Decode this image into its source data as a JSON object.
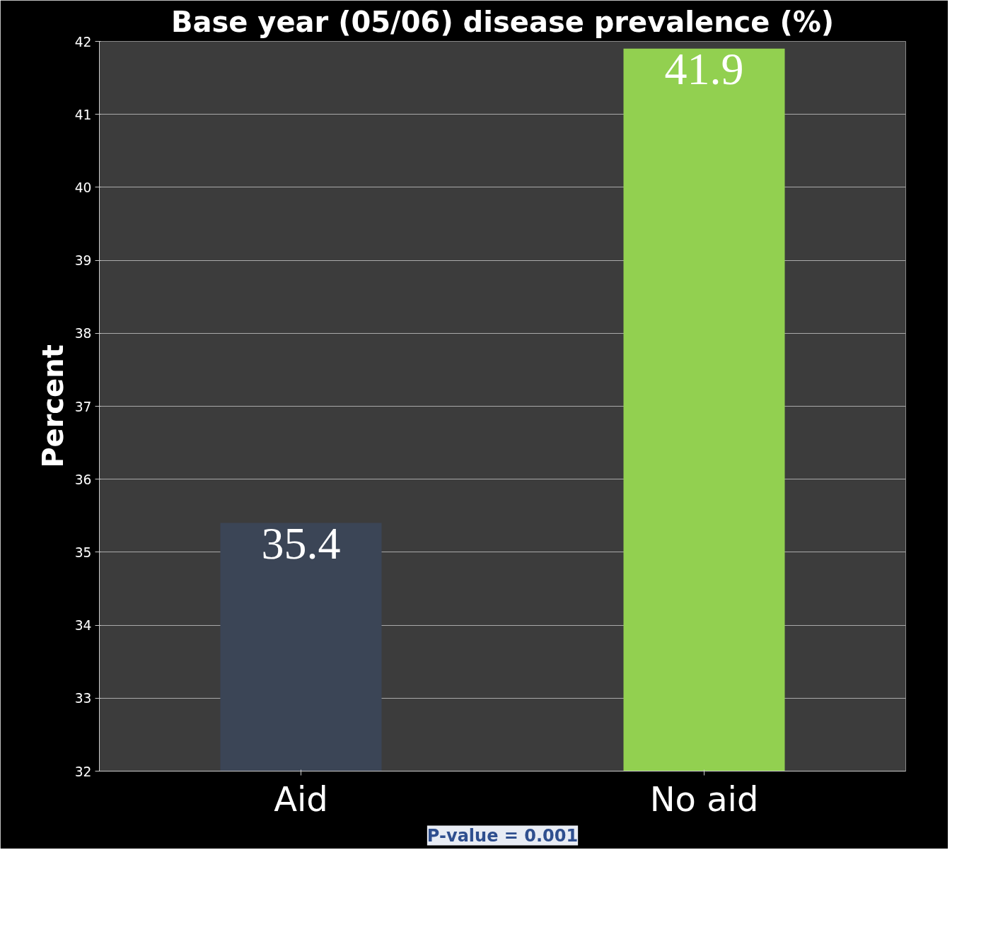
{
  "chart_data": {
    "type": "bar",
    "title": "Base year (05/06) disease prevalence (%)",
    "ylabel": "Percent",
    "categories": [
      "Aid",
      "No aid"
    ],
    "values": [
      35.4,
      41.9
    ],
    "colors": [
      "#3b4556",
      "#92d050"
    ],
    "ylim": [
      32,
      42
    ],
    "yticks": [
      32,
      33,
      34,
      35,
      36,
      37,
      38,
      39,
      40,
      41,
      42
    ],
    "grid": "y",
    "data_labels": true,
    "annotations": [
      "P-value = 0.001"
    ]
  }
}
